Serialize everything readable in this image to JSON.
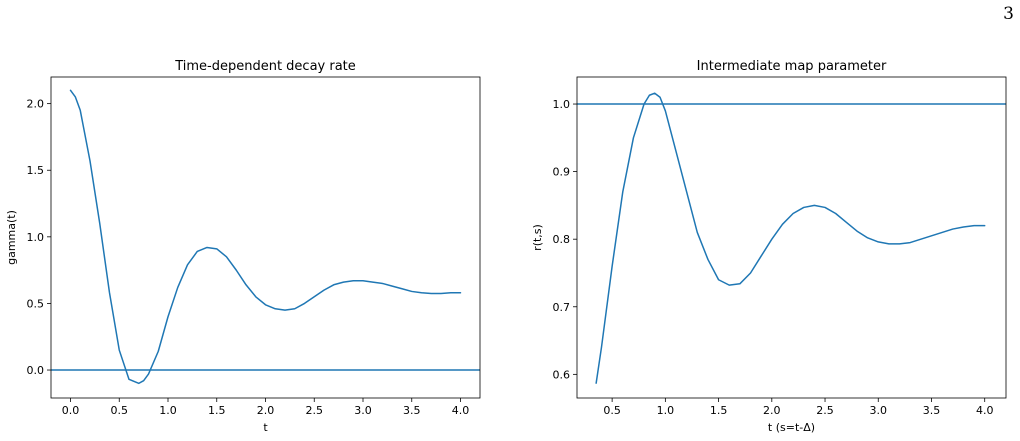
{
  "page_number": "3",
  "chart_data": [
    {
      "type": "line",
      "title": "Time-dependent decay rate",
      "xlabel": "t",
      "ylabel": "gamma(t)",
      "xlim": [
        -0.2,
        4.2
      ],
      "ylim": [
        -0.21,
        2.2
      ],
      "xticks": [
        0.0,
        0.5,
        1.0,
        1.5,
        2.0,
        2.5,
        3.0,
        3.5,
        4.0
      ],
      "xtick_labels": [
        "0.0",
        "0.5",
        "1.0",
        "1.5",
        "2.0",
        "2.5",
        "3.0",
        "3.5",
        "4.0"
      ],
      "yticks": [
        0.0,
        0.5,
        1.0,
        1.5,
        2.0
      ],
      "ytick_labels": [
        "0.0",
        "0.5",
        "1.0",
        "1.5",
        "2.0"
      ],
      "grid": false,
      "color": "#1f77b4",
      "reference_line_y": 0.0,
      "series": [
        {
          "x": [
            0.0,
            0.05,
            0.1,
            0.2,
            0.3,
            0.4,
            0.5,
            0.6,
            0.7,
            0.75,
            0.8,
            0.9,
            1.0,
            1.1,
            1.2,
            1.3,
            1.4,
            1.5,
            1.6,
            1.7,
            1.8,
            1.9,
            2.0,
            2.1,
            2.2,
            2.3,
            2.4,
            2.5,
            2.6,
            2.7,
            2.8,
            2.9,
            3.0,
            3.1,
            3.2,
            3.3,
            3.4,
            3.5,
            3.6,
            3.7,
            3.8,
            3.9,
            4.0
          ],
          "values": [
            2.1,
            2.05,
            1.95,
            1.57,
            1.1,
            0.58,
            0.15,
            -0.07,
            -0.1,
            -0.08,
            -0.03,
            0.14,
            0.4,
            0.62,
            0.79,
            0.89,
            0.92,
            0.91,
            0.85,
            0.75,
            0.64,
            0.55,
            0.49,
            0.46,
            0.45,
            0.46,
            0.5,
            0.55,
            0.6,
            0.64,
            0.66,
            0.67,
            0.67,
            0.66,
            0.65,
            0.63,
            0.61,
            0.59,
            0.58,
            0.575,
            0.575,
            0.58,
            0.58
          ]
        }
      ]
    },
    {
      "type": "line",
      "title": "Intermediate map parameter",
      "xlabel": "t  (s=t-Δ)",
      "ylabel": "r(t,s)",
      "xlim": [
        0.17,
        4.2
      ],
      "ylim": [
        0.565,
        1.04
      ],
      "xticks": [
        0.5,
        1.0,
        1.5,
        2.0,
        2.5,
        3.0,
        3.5,
        4.0
      ],
      "xtick_labels": [
        "0.5",
        "1.0",
        "1.5",
        "2.0",
        "2.5",
        "3.0",
        "3.5",
        "4.0"
      ],
      "yticks": [
        0.6,
        0.7,
        0.8,
        0.9,
        1.0
      ],
      "ytick_labels": [
        "0.6",
        "0.7",
        "0.8",
        "0.9",
        "1.0"
      ],
      "grid": false,
      "color": "#1f77b4",
      "reference_line_y": 1.0,
      "series": [
        {
          "x": [
            0.35,
            0.4,
            0.5,
            0.6,
            0.7,
            0.8,
            0.85,
            0.9,
            0.95,
            1.0,
            1.1,
            1.2,
            1.3,
            1.4,
            1.5,
            1.6,
            1.7,
            1.8,
            1.9,
            2.0,
            2.1,
            2.2,
            2.3,
            2.4,
            2.5,
            2.6,
            2.7,
            2.8,
            2.9,
            3.0,
            3.1,
            3.2,
            3.3,
            3.4,
            3.5,
            3.6,
            3.7,
            3.8,
            3.9,
            4.0
          ],
          "values": [
            0.587,
            0.64,
            0.76,
            0.87,
            0.95,
            1.0,
            1.013,
            1.016,
            1.01,
            0.99,
            0.93,
            0.87,
            0.81,
            0.77,
            0.74,
            0.732,
            0.734,
            0.75,
            0.775,
            0.8,
            0.822,
            0.838,
            0.847,
            0.85,
            0.847,
            0.838,
            0.825,
            0.812,
            0.802,
            0.796,
            0.793,
            0.793,
            0.795,
            0.8,
            0.805,
            0.81,
            0.815,
            0.818,
            0.82,
            0.82
          ]
        }
      ]
    }
  ]
}
